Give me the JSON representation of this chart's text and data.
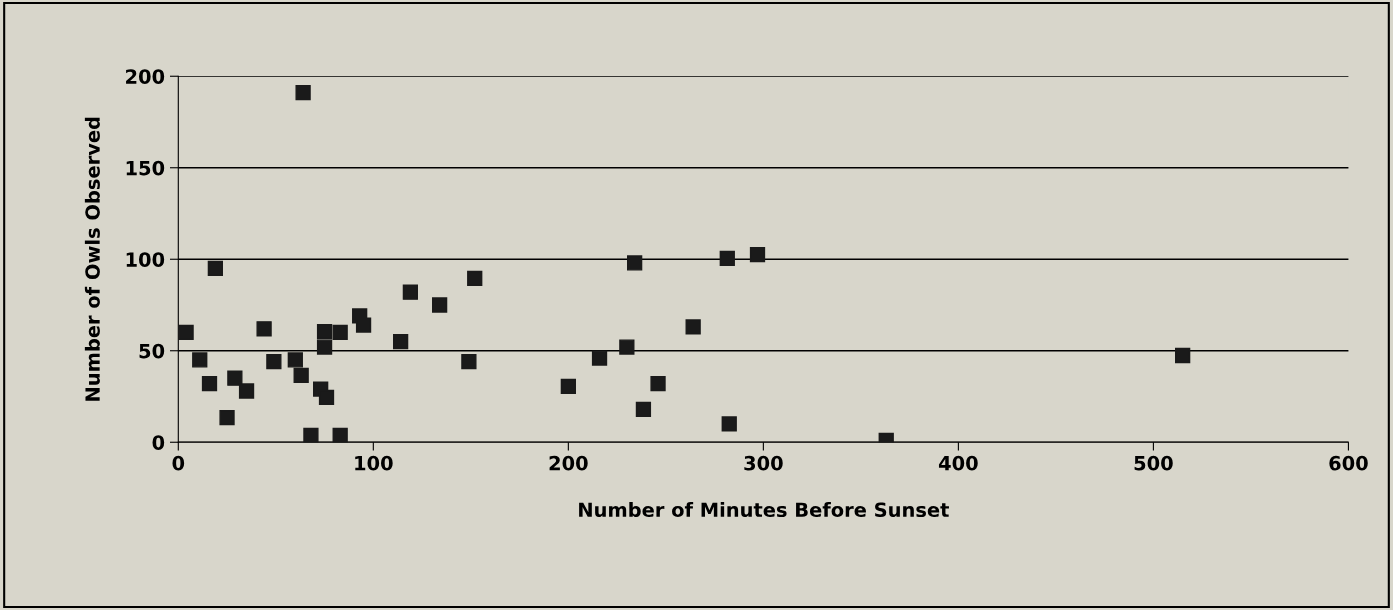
{
  "chart_data": {
    "type": "scatter",
    "xlabel": "Number of Minutes Before Sunset",
    "ylabel": "Number of Owls Observed",
    "x": [
      4,
      11,
      19,
      16,
      25,
      29,
      35,
      44,
      49,
      60,
      63,
      64,
      68,
      83,
      73,
      76,
      75,
      75,
      83,
      93,
      95,
      119,
      114,
      134,
      152,
      149,
      200,
      216,
      230,
      234,
      238.5,
      246,
      264,
      281.5,
      282.5,
      297,
      515,
      363
    ],
    "series": [
      {
        "color": "#1a1a1a",
        "values": [
          60,
          45,
          95,
          32,
          13.5,
          35,
          28,
          62,
          44,
          45,
          36.5,
          191,
          3.7,
          3.7,
          29,
          24.5,
          60.5,
          52,
          60,
          69,
          64,
          82,
          55,
          75,
          89.5,
          44,
          30.5,
          46,
          52,
          98,
          18,
          32,
          63,
          100.5,
          10,
          102.5,
          47.4,
          1
        ]
      }
    ],
    "xlim": [
      0,
      600
    ],
    "xticks": [
      0,
      100,
      200,
      300,
      400,
      500,
      600
    ],
    "ylim": [
      0,
      200
    ],
    "yticks": [
      0,
      50,
      100,
      150,
      200
    ],
    "grid": "y",
    "marker": "square"
  }
}
